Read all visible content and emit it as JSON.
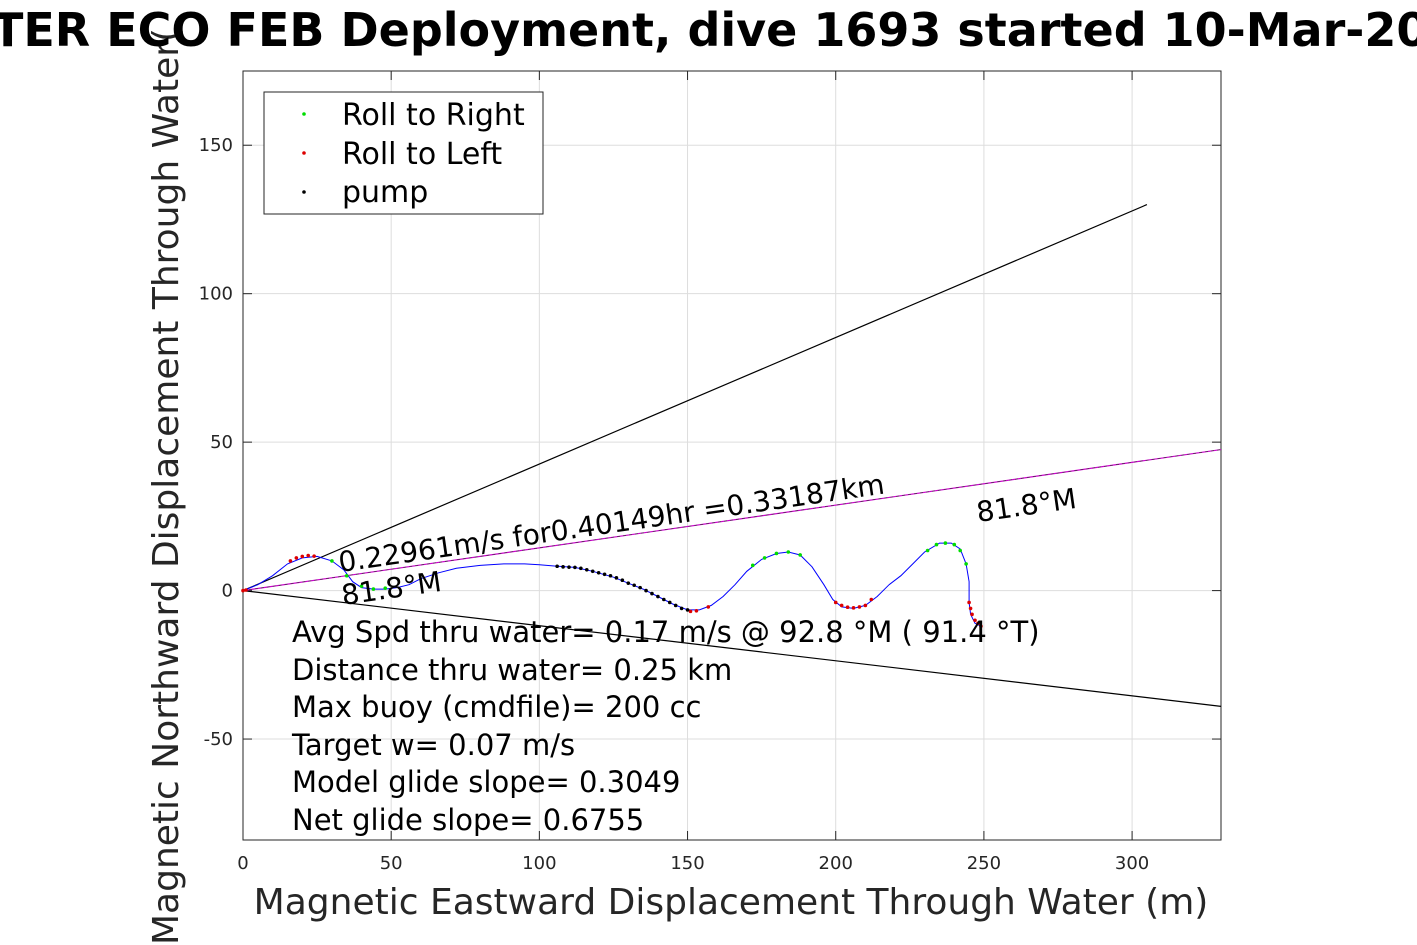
{
  "chart_data": {
    "type": "line",
    "title": "TER ECO FEB Deployment, dive 1693 started 10-Mar-20",
    "xlabel": "Magnetic Eastward Displacement Through Water (m)",
    "ylabel": "Magnetic Northward Displacement Through Water(",
    "xlim": [
      0,
      330
    ],
    "ylim": [
      -84,
      175
    ],
    "xticks": [
      0,
      50,
      100,
      150,
      200,
      250,
      300
    ],
    "yticks": [
      -50,
      0,
      50,
      100,
      150
    ],
    "grid": true,
    "legend_position": "top-left",
    "legend": [
      {
        "label": "Roll to Right",
        "color": "#00dd00"
      },
      {
        "label": "Roll to Left",
        "color": "#dd0000"
      },
      {
        "label": "pump",
        "color": "#000000"
      }
    ],
    "track": [
      [
        0,
        0
      ],
      [
        5,
        2
      ],
      [
        10,
        5
      ],
      [
        15,
        9
      ],
      [
        20,
        11
      ],
      [
        25,
        11.5
      ],
      [
        30,
        10
      ],
      [
        34,
        7
      ],
      [
        37,
        3
      ],
      [
        40,
        1
      ],
      [
        44,
        0.5
      ],
      [
        48,
        0.5
      ],
      [
        52,
        1
      ],
      [
        56,
        2
      ],
      [
        60,
        4
      ],
      [
        66,
        6
      ],
      [
        72,
        7.5
      ],
      [
        80,
        8.5
      ],
      [
        88,
        9
      ],
      [
        95,
        9
      ],
      [
        100,
        8.7
      ],
      [
        105,
        8.3
      ],
      [
        112,
        7.8
      ],
      [
        118,
        6.5
      ],
      [
        125,
        4.5
      ],
      [
        130,
        2.5
      ],
      [
        135,
        0.5
      ],
      [
        140,
        -2
      ],
      [
        145,
        -4.5
      ],
      [
        150,
        -6.5
      ],
      [
        154,
        -6.5
      ],
      [
        158,
        -5
      ],
      [
        162,
        -2
      ],
      [
        166,
        2
      ],
      [
        170,
        6.5
      ],
      [
        175,
        10.5
      ],
      [
        180,
        12.5
      ],
      [
        184,
        13
      ],
      [
        188,
        12
      ],
      [
        192,
        8
      ],
      [
        196,
        2
      ],
      [
        199,
        -3
      ],
      [
        202,
        -5.5
      ],
      [
        206,
        -6
      ],
      [
        210,
        -5
      ],
      [
        214,
        -2
      ],
      [
        218,
        2
      ],
      [
        222,
        5
      ],
      [
        226,
        9
      ],
      [
        230,
        13
      ],
      [
        235,
        16
      ],
      [
        239,
        16
      ],
      [
        242,
        14
      ],
      [
        244,
        9
      ],
      [
        245,
        3
      ],
      [
        245,
        -4
      ],
      [
        245.5,
        -8
      ],
      [
        247,
        -11
      ],
      [
        249,
        -12
      ]
    ],
    "roll_right": [
      [
        30,
        10
      ],
      [
        35,
        5
      ],
      [
        40,
        1.5
      ],
      [
        44,
        0.5
      ],
      [
        48,
        0.8
      ],
      [
        172,
        8.5
      ],
      [
        176,
        11
      ],
      [
        180,
        12.5
      ],
      [
        184,
        13
      ],
      [
        188,
        12
      ],
      [
        231,
        13.5
      ],
      [
        234,
        15.5
      ],
      [
        237,
        16
      ],
      [
        240,
        15.5
      ],
      [
        242,
        13.5
      ],
      [
        244,
        9
      ]
    ],
    "roll_left": [
      [
        0,
        0
      ],
      [
        1,
        0.2
      ],
      [
        16,
        10
      ],
      [
        18,
        11
      ],
      [
        20,
        11.5
      ],
      [
        22,
        11.8
      ],
      [
        24,
        11.6
      ],
      [
        151,
        -7
      ],
      [
        153,
        -6.8
      ],
      [
        157,
        -5.5
      ],
      [
        200,
        -4
      ],
      [
        202,
        -5
      ],
      [
        204,
        -5.6
      ],
      [
        206,
        -5.8
      ],
      [
        208,
        -5.5
      ],
      [
        210,
        -5
      ],
      [
        212,
        -3
      ],
      [
        245,
        -4
      ],
      [
        245.5,
        -6
      ],
      [
        246,
        -8
      ],
      [
        247,
        -10
      ],
      [
        248,
        -11
      ],
      [
        249,
        -12
      ]
    ],
    "pump": [
      [
        106,
        8.2
      ],
      [
        108,
        8
      ],
      [
        110,
        7.9
      ],
      [
        112,
        7.8
      ],
      [
        114,
        7.5
      ],
      [
        116,
        7
      ],
      [
        118,
        6.5
      ],
      [
        120,
        6
      ],
      [
        122,
        5.5
      ],
      [
        124,
        5
      ],
      [
        126,
        4.3
      ],
      [
        128,
        3.5
      ],
      [
        130,
        2.5
      ],
      [
        132,
        1.8
      ],
      [
        134,
        1
      ],
      [
        136,
        0
      ],
      [
        138,
        -1
      ],
      [
        140,
        -2
      ],
      [
        142,
        -3
      ],
      [
        144,
        -4
      ],
      [
        146,
        -5
      ],
      [
        148,
        -6
      ],
      [
        150,
        -6.5
      ]
    ],
    "envelope_lines": [
      {
        "from": [
          0,
          0
        ],
        "to": [
          305,
          130
        ]
      },
      {
        "from": [
          0,
          0
        ],
        "to": [
          330,
          -39
        ]
      }
    ],
    "heading_line": {
      "from": [
        0,
        0
      ],
      "to": [
        330,
        47.5
      ],
      "color": "#cc00cc"
    },
    "heading_label": "0.22961m/s for0.40149hr =0.33187km",
    "heading_label_a": "81.8°M",
    "heading_label_b": "81.8°M",
    "stats": [
      "Avg Spd thru water=  0.17 m/s @  92.8 °M ( 91.4 °T)",
      "Distance thru water=  0.25 km",
      "Max buoy (cmdfile)= 200 cc",
      "Target w= 0.07 m/s",
      "Model glide slope= 0.3049",
      "Net glide slope= 0.6755"
    ]
  }
}
